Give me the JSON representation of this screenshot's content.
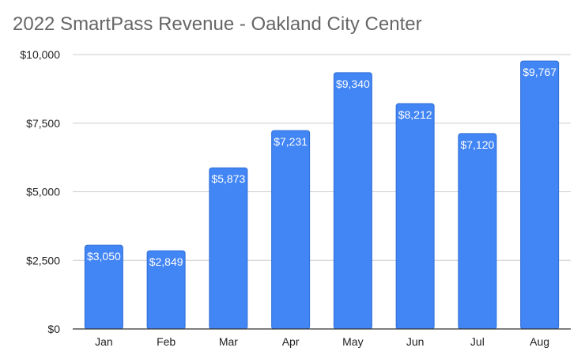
{
  "chart_data": {
    "type": "bar",
    "title": "2022 SmartPass Revenue - Oakland City Center",
    "xlabel": "",
    "ylabel": "",
    "categories": [
      "Jan",
      "Feb",
      "Mar",
      "Apr",
      "May",
      "Jun",
      "Jul",
      "Aug"
    ],
    "values": [
      3050,
      2849,
      5873,
      7231,
      9340,
      8212,
      7120,
      9767
    ],
    "data_labels": [
      "$3,050",
      "$2,849",
      "$5,873",
      "$7,231",
      "$9,340",
      "$8,212",
      "$7,120",
      "$9,767"
    ],
    "ylim": [
      0,
      10000
    ],
    "yticks": [
      0,
      2500,
      5000,
      7500,
      10000
    ],
    "ytick_labels": [
      "$0",
      "$2,500",
      "$5,000",
      "$7,500",
      "$10,000"
    ],
    "grid": true,
    "legend": "none",
    "bar_color": "#4285f4",
    "bar_border_color": "#2f6fd6",
    "grid_color": "#cccccc",
    "axis_color": "#333333"
  }
}
